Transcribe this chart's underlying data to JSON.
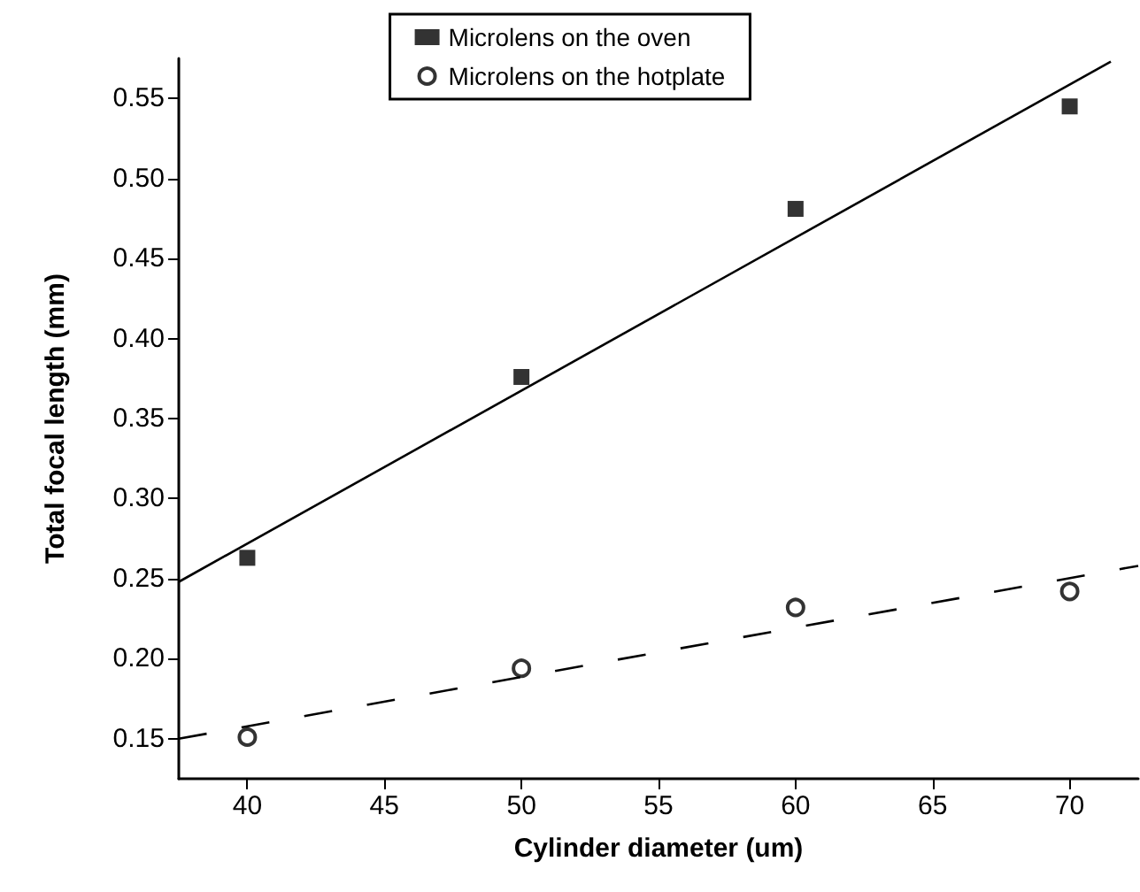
{
  "chart_data": {
    "type": "scatter",
    "xlabel": "Cylinder diameter (um)",
    "ylabel": "Total focal length (mm)",
    "x": [
      40,
      50,
      60,
      70
    ],
    "series": [
      {
        "name": "Microlens on the oven",
        "color": "#000000",
        "marker": "square",
        "values": [
          0.263,
          0.376,
          0.481,
          0.545
        ]
      },
      {
        "name": "Microlens on the hotplate",
        "color": "#000000",
        "marker": "circle",
        "values": [
          0.151,
          0.194,
          0.232,
          0.242
        ]
      },
      {
        "type": "line",
        "color": "#000000",
        "line_style": "solid",
        "marker": "none",
        "x": [
          37.5,
          71.5
        ],
        "values": [
          0.248,
          0.573
        ]
      },
      {
        "type": "line",
        "color": "#000000",
        "line_style": "dashed",
        "marker": "none",
        "x": [
          37.5,
          72.5
        ],
        "values": [
          0.15,
          0.258
        ]
      }
    ],
    "xlim": [
      37.5,
      72.5
    ],
    "xticks": [
      40,
      45,
      50,
      55,
      60,
      65,
      70
    ],
    "ylim": [
      0.125,
      0.575
    ],
    "yticks": [
      {
        "value": 0.15,
        "label": "0.15"
      },
      {
        "value": 0.2,
        "label": "0.20"
      },
      {
        "value": 0.25,
        "label": "0.25"
      },
      {
        "value": 0.3,
        "label": "0.30"
      },
      {
        "value": 0.35,
        "label": "0.35"
      },
      {
        "value": 0.4,
        "label": "0.40"
      },
      {
        "value": 0.45,
        "label": "0.45"
      },
      {
        "value": 0.5,
        "label": "0.50"
      },
      {
        "value": 0.55,
        "label": "0.55"
      }
    ],
    "grid": false,
    "legend": "top"
  }
}
